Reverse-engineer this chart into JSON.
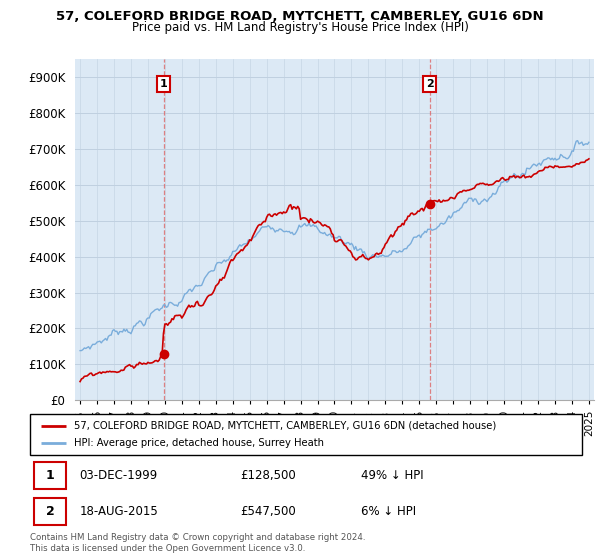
{
  "title": "57, COLEFORD BRIDGE ROAD, MYTCHETT, CAMBERLEY, GU16 6DN",
  "subtitle": "Price paid vs. HM Land Registry's House Price Index (HPI)",
  "ylim": [
    0,
    950000
  ],
  "yticks": [
    0,
    100000,
    200000,
    300000,
    400000,
    500000,
    600000,
    700000,
    800000,
    900000
  ],
  "ytick_labels": [
    "£0",
    "£100K",
    "£200K",
    "£300K",
    "£400K",
    "£500K",
    "£600K",
    "£700K",
    "£800K",
    "£900K"
  ],
  "sale1_price": 128500,
  "sale2_price": 547500,
  "sale1_year": 1999.92,
  "sale2_year": 2015.62,
  "line_color_property": "#cc0000",
  "line_color_hpi": "#7aaddb",
  "vline_color": "#dd6666",
  "bg_color": "#dce9f5",
  "legend_property": "57, COLEFORD BRIDGE ROAD, MYTCHETT, CAMBERLEY, GU16 6DN (detached house)",
  "legend_hpi": "HPI: Average price, detached house, Surrey Heath",
  "table_row1": [
    "1",
    "03-DEC-1999",
    "£128,500",
    "49% ↓ HPI"
  ],
  "table_row2": [
    "2",
    "18-AUG-2015",
    "£547,500",
    "6% ↓ HPI"
  ],
  "footnote": "Contains HM Land Registry data © Crown copyright and database right 2024.\nThis data is licensed under the Open Government Licence v3.0.",
  "grid_color": "#c0d0e0",
  "marker_color": "#cc0000",
  "box_edge_color": "#cc0000"
}
